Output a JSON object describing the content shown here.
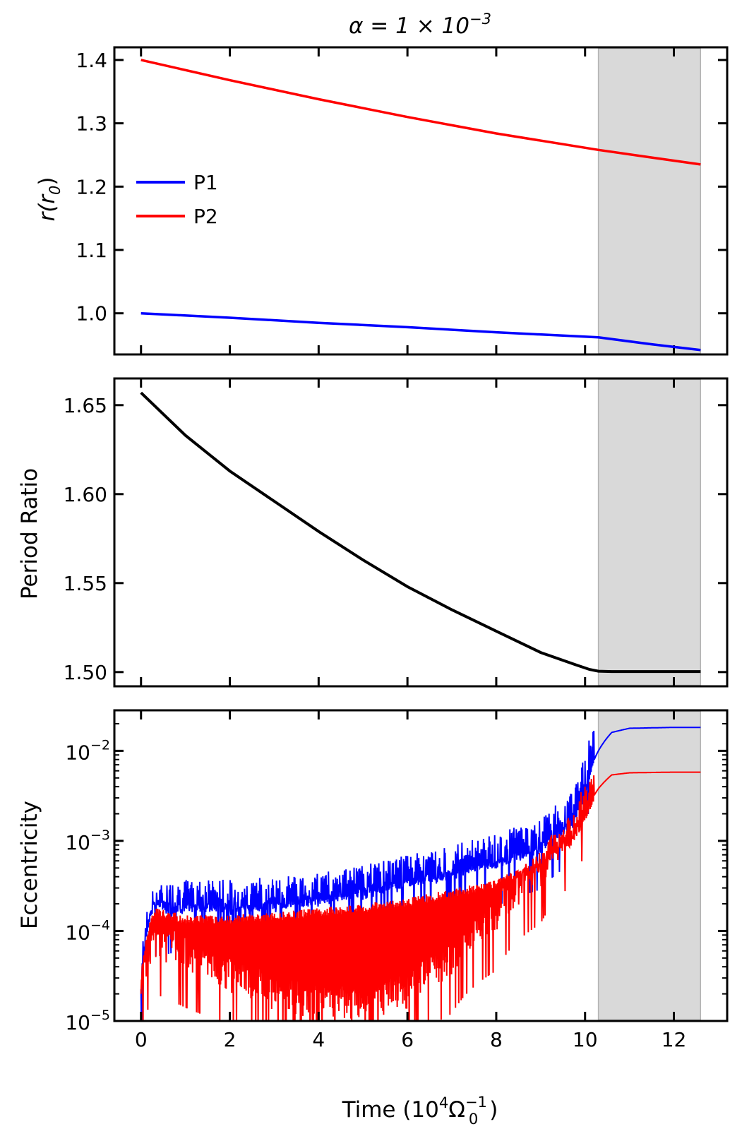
{
  "title": "α = 1 × 10",
  "title_exponent": "−3",
  "xlabel_prefix": "Time (10",
  "xlabel_exp": "4",
  "xlabel_omega": "Ω",
  "xlabel_omega_sup": "−1",
  "xlabel_omega_sub": "0",
  "xlabel_suffix": ")",
  "colors": {
    "p1": "#0000ff",
    "p2": "#ff0000",
    "period": "#000000",
    "shade": "#d9d9d9"
  },
  "chart_data": [
    {
      "id": "radius",
      "type": "line",
      "ylabel_main": "r(r",
      "ylabel_sub": "0",
      "ylabel_end": ")",
      "xlim": [
        -0.6,
        13.2
      ],
      "ylim": [
        0.935,
        1.42
      ],
      "yticks": [
        1.0,
        1.1,
        1.2,
        1.3,
        1.4
      ],
      "ytick_labels": [
        "1.0",
        "1.1",
        "1.2",
        "1.3",
        "1.4"
      ],
      "shaded_region": [
        10.3,
        12.6
      ],
      "legend": {
        "position": "center-left",
        "entries": [
          "P1",
          "P2"
        ]
      },
      "series": [
        {
          "name": "P1",
          "x": [
            0,
            2,
            4,
            6,
            8,
            10.3,
            11.5,
            12.6
          ],
          "values": [
            1.0,
            0.993,
            0.985,
            0.978,
            0.97,
            0.962,
            0.951,
            0.942
          ]
        },
        {
          "name": "P2",
          "x": [
            0,
            2,
            4,
            6,
            8,
            10.3,
            11.5,
            12.6
          ],
          "values": [
            1.4,
            1.368,
            1.338,
            1.31,
            1.284,
            1.258,
            1.246,
            1.235
          ]
        }
      ]
    },
    {
      "id": "period_ratio",
      "type": "line",
      "ylabel": "Period Ratio",
      "xlim": [
        -0.6,
        13.2
      ],
      "ylim": [
        1.492,
        1.665
      ],
      "yticks": [
        1.5,
        1.55,
        1.6,
        1.65
      ],
      "ytick_labels": [
        "1.50",
        "1.55",
        "1.60",
        "1.65"
      ],
      "shaded_region": [
        10.3,
        12.6
      ],
      "series": [
        {
          "name": "Period Ratio",
          "x": [
            0,
            0.5,
            1,
            2,
            3,
            4,
            5,
            6,
            7,
            8,
            9,
            9.8,
            10.1,
            10.3,
            10.6,
            11,
            12,
            12.6
          ],
          "values": [
            1.657,
            1.645,
            1.633,
            1.613,
            1.596,
            1.579,
            1.563,
            1.548,
            1.535,
            1.523,
            1.511,
            1.504,
            1.5015,
            1.5005,
            1.5003,
            1.5003,
            1.5003,
            1.5003
          ]
        }
      ]
    },
    {
      "id": "eccentricity",
      "type": "line",
      "ylabel": "Eccentricity",
      "yscale": "log",
      "xlim": [
        -0.6,
        13.2
      ],
      "ylim_log10": [
        -5,
        -1.55
      ],
      "yticks_log10": [
        -5,
        -4,
        -3,
        -2
      ],
      "ytick_base": "10",
      "ytick_exponents": [
        "−5",
        "−4",
        "−3",
        "−2"
      ],
      "shaded_region": [
        10.3,
        12.6
      ],
      "xticks": [
        0,
        2,
        4,
        6,
        8,
        10,
        12
      ],
      "xtick_labels": [
        "0",
        "2",
        "4",
        "6",
        "8",
        "10",
        "12"
      ],
      "series": [
        {
          "name": "P1",
          "envelope": "oscillating",
          "x": [
            0,
            0.3,
            1,
            2,
            3,
            4,
            5,
            6,
            7,
            8,
            9,
            9.7,
            10.0,
            10.3,
            10.6,
            11,
            12,
            12.6
          ],
          "upper": [
            2.5e-05,
            0.00022,
            0.0002,
            0.0002,
            0.00021,
            0.00024,
            0.0003,
            0.00038,
            0.00048,
            0.00062,
            0.0009,
            0.0016,
            0.0035,
            0.01,
            0.016,
            0.0178,
            0.0182,
            0.0182
          ],
          "lower": [
            1.6e-05,
            0.00013,
            0.00015,
            0.00015,
            0.00016,
            0.00018,
            0.00022,
            0.00028,
            0.00036,
            0.00047,
            0.00072,
            0.0014,
            0.0034,
            0.01,
            0.016,
            0.0178,
            0.0182,
            0.0182
          ]
        },
        {
          "name": "P2",
          "envelope": "oscillating",
          "x": [
            0,
            0.3,
            1,
            2,
            3,
            4,
            5,
            6,
            7,
            8,
            9,
            9.7,
            10.0,
            10.3,
            10.6,
            11,
            12,
            12.6
          ],
          "upper": [
            2.5e-05,
            0.00018,
            0.00015,
            0.00015,
            0.00016,
            0.00018,
            0.0002,
            0.00023,
            0.00029,
            0.00037,
            0.0006,
            0.0011,
            0.0019,
            0.0038,
            0.0054,
            0.0057,
            0.0058,
            0.0058
          ],
          "lower": [
            1.6e-05,
            5e-05,
            3.5e-05,
            2e-05,
            1.3e-05,
            1e-05,
            1e-05,
            1.3e-05,
            3e-05,
            9e-05,
            0.0003,
            0.0008,
            0.0017,
            0.0038,
            0.0054,
            0.0057,
            0.0058,
            0.0058
          ]
        }
      ]
    }
  ]
}
